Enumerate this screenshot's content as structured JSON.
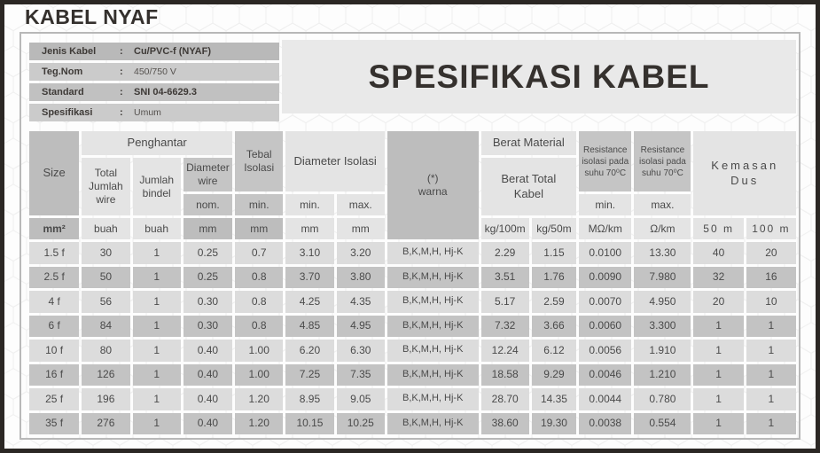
{
  "page": {
    "title": "KABEL NYAF"
  },
  "info": {
    "rows": [
      {
        "label": "Jenis Kabel",
        "sep": ":",
        "value": "Cu/PVC-f (NYAF)"
      },
      {
        "label": "Teg.Nom",
        "sep": ":",
        "value": "450/750 V"
      },
      {
        "label": "Standard",
        "sep": ":",
        "value": "SNI 04-6629.3"
      },
      {
        "label": "Spesifikasi",
        "sep": ":",
        "value": "Umum"
      }
    ]
  },
  "spec_title": "SPESIFIKASI KABEL",
  "table": {
    "headers": {
      "size": "Size",
      "penghantar": "Penghantar",
      "total_jumlah_wire": "Total Jumlah wire",
      "jumlah_bindel": "Jumlah bindel",
      "diameter_wire": "Diameter wire",
      "nom": "nom.",
      "tebal_isolasi": "Tebal Isolasi",
      "tebal_min": "min.",
      "diameter_isolasi": "Diameter Isolasi",
      "diameter_min": "min.",
      "diameter_max": "max.",
      "warna_mark": "(*)",
      "warna": "warna",
      "berat_material": "Berat Material",
      "berat_total_kabel": "Berat Total Kabel",
      "resistance_min": "Resistance isolasi pada suhu 70⁰C",
      "resistance_min_sub": "min.",
      "resistance_max": "Resistance isolasi pada suhu 70⁰C",
      "resistance_max_sub": "max.",
      "kemasan_line1": "Kemasan",
      "kemasan_line2": "Dus"
    },
    "units": {
      "size": "mm²",
      "total_wire": "buah",
      "bindel": "buah",
      "diameter_wire": "mm",
      "tebal": "mm",
      "diameter_min": "mm",
      "diameter_max": "mm",
      "kg100": "kg/100m",
      "kg50": "kg/50m",
      "mohm": "MΩ/km",
      "ohm": "Ω/km",
      "m50": "50 m",
      "m100": "100 m"
    },
    "rows": [
      [
        "1.5 f",
        "30",
        "1",
        "0.25",
        "0.7",
        "3.10",
        "3.20",
        "B,K,M,H, Hj-K",
        "2.29",
        "1.15",
        "0.0100",
        "13.30",
        "40",
        "20"
      ],
      [
        "2.5 f",
        "50",
        "1",
        "0.25",
        "0.8",
        "3.70",
        "3.80",
        "B,K,M,H, Hj-K",
        "3.51",
        "1.76",
        "0.0090",
        "7.980",
        "32",
        "16"
      ],
      [
        "4 f",
        "56",
        "1",
        "0.30",
        "0.8",
        "4.25",
        "4.35",
        "B,K,M,H, Hj-K",
        "5.17",
        "2.59",
        "0.0070",
        "4.950",
        "20",
        "10"
      ],
      [
        "6 f",
        "84",
        "1",
        "0.30",
        "0.8",
        "4.85",
        "4.95",
        "B,K,M,H, Hj-K",
        "7.32",
        "3.66",
        "0.0060",
        "3.300",
        "1",
        "1"
      ],
      [
        "10 f",
        "80",
        "1",
        "0.40",
        "1.00",
        "6.20",
        "6.30",
        "B,K,M,H, Hj-K",
        "12.24",
        "6.12",
        "0.0056",
        "1.910",
        "1",
        "1"
      ],
      [
        "16 f",
        "126",
        "1",
        "0.40",
        "1.00",
        "7.25",
        "7.35",
        "B,K,M,H, Hj-K",
        "18.58",
        "9.29",
        "0.0046",
        "1.210",
        "1",
        "1"
      ],
      [
        "25 f",
        "196",
        "1",
        "0.40",
        "1.20",
        "8.95",
        "9.05",
        "B,K,M,H, Hj-K",
        "28.70",
        "14.35",
        "0.0044",
        "0.780",
        "1",
        "1"
      ],
      [
        "35 f",
        "276",
        "1",
        "0.40",
        "1.20",
        "10.15",
        "10.25",
        "B,K,M,H, Hj-K",
        "38.60",
        "19.30",
        "0.0038",
        "0.554",
        "1",
        "1"
      ]
    ]
  },
  "colors": {
    "frame": "#2b2724",
    "panel_border": "#b8b8b8",
    "header_dark": "#bdbdbd",
    "header_mid": "#c5c5c5",
    "header_light": "#e4e4e4",
    "row_light": "#dcdcdc",
    "row_dark": "#c3c3c3",
    "title_box": "#e9e9e9",
    "text": "#4a4a4a"
  }
}
